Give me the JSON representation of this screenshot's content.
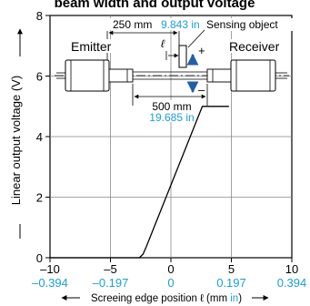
{
  "chart_data": {
    "type": "line",
    "title": "beam width and output voltage",
    "xlabel_prefix": "Screeing edge position ℓ (mm",
    "xlabel_unit2": "in",
    "xlabel_suffix": ")",
    "ylabel": "Linear output voltage (V)",
    "xlim": [
      -10,
      10
    ],
    "ylim": [
      0,
      8
    ],
    "x_ticks": [
      "–10",
      "–5",
      "0",
      "5",
      "10"
    ],
    "x_ticks_in": [
      "–0.394",
      "–0.197",
      "0",
      "0.197",
      "0.394"
    ],
    "y_ticks": [
      "0",
      "2",
      "4",
      "6",
      "8"
    ],
    "grid": true,
    "series": [
      {
        "x": [
          -10,
          -2.6,
          -2.3,
          -2,
          2.3,
          2.6,
          4.8
        ],
        "y": [
          0,
          0,
          0.12,
          0.4,
          4.7,
          5.0,
          5.0
        ]
      }
    ],
    "diagram": {
      "emitter_label": "Emitter",
      "receiver_label": "Receiver",
      "sensing_object_label": "Sensing object",
      "dim_top_mm": "250 mm",
      "dim_top_in": "9.843 in",
      "dim_bottom_mm": "500 mm",
      "dim_bottom_in": "19.685 in",
      "ell_symbol": "ℓ",
      "plus_sign": "+",
      "minus_sign": "–"
    },
    "colors": {
      "inch_blue": "#1aa0d8",
      "arrow_blue": "#1f5fa8",
      "grid": "#888888"
    }
  }
}
